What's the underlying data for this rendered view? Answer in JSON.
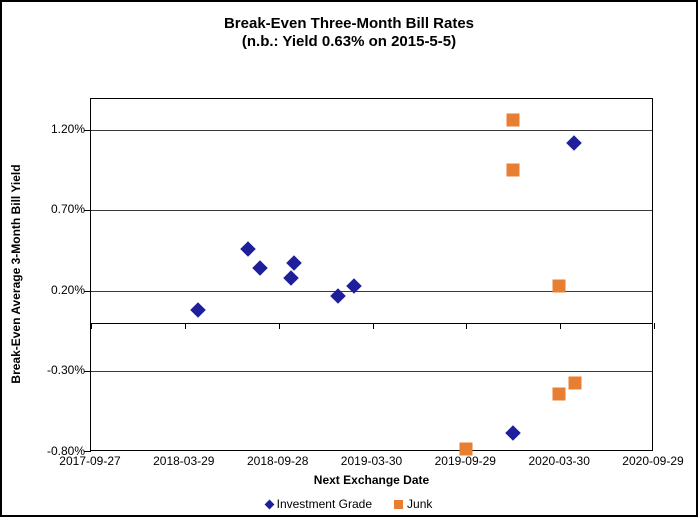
{
  "chart": {
    "title_line1": "Break-Even Three-Month Bill Rates",
    "title_line2": "(n.b.: Yield 0.63% on 2015-5-5)"
  },
  "chart_data": {
    "type": "scatter",
    "title": "Break-Even Three-Month Bill Rates (n.b.: Yield 0.63% on 2015-5-5)",
    "xlabel": "Next Exchange Date",
    "ylabel": "Break-Even Average 3-Month Bill Yield",
    "legend_position": "bottom",
    "grid": true,
    "x_range_dates": [
      "2017-09-27",
      "2020-09-29"
    ],
    "ylim": [
      -0.8,
      1.39
    ],
    "y_major_unit": 0.5,
    "x_axis_crosses_at_y": 0,
    "x_ticks": [
      {
        "date": "2017-09-27",
        "label": "2017-09-27"
      },
      {
        "date": "2018-03-29",
        "label": "2018-03-29"
      },
      {
        "date": "2018-09-28",
        "label": "2018-09-28"
      },
      {
        "date": "2019-03-30",
        "label": "2019-03-30"
      },
      {
        "date": "2019-09-29",
        "label": "2019-09-29"
      },
      {
        "date": "2020-03-30",
        "label": "2020-03-30"
      },
      {
        "date": "2020-09-29",
        "label": "2020-09-29"
      }
    ],
    "y_ticks": [
      {
        "value": 1.2,
        "label": "1.20%"
      },
      {
        "value": 0.7,
        "label": "0.70%"
      },
      {
        "value": 0.2,
        "label": "0.20%"
      },
      {
        "value": -0.3,
        "label": "-0.30%"
      },
      {
        "value": -0.8,
        "label": "-0.80%"
      }
    ],
    "gridline_values": [
      1.2,
      0.7,
      0.2,
      -0.3
    ],
    "series": [
      {
        "name": "Investment Grade",
        "marker": "diamond",
        "color": "#1F1F9B",
        "points": [
          {
            "x": "2018-04-23",
            "y": 0.08
          },
          {
            "x": "2018-07-31",
            "y": 0.46
          },
          {
            "x": "2018-08-23",
            "y": 0.34
          },
          {
            "x": "2018-10-22",
            "y": 0.28
          },
          {
            "x": "2018-10-27",
            "y": 0.37
          },
          {
            "x": "2019-01-21",
            "y": 0.17
          },
          {
            "x": "2019-02-21",
            "y": 0.23
          },
          {
            "x": "2019-12-28",
            "y": -0.68
          },
          {
            "x": "2020-04-25",
            "y": 1.12
          }
        ]
      },
      {
        "name": "Junk",
        "marker": "square",
        "color": "#E87E31",
        "points": [
          {
            "x": "2019-09-28",
            "y": -0.78
          },
          {
            "x": "2019-12-28",
            "y": 1.26
          },
          {
            "x": "2019-12-28",
            "y": 0.95
          },
          {
            "x": "2020-03-28",
            "y": 0.23
          },
          {
            "x": "2020-03-28",
            "y": -0.44
          },
          {
            "x": "2020-04-27",
            "y": -0.37
          }
        ]
      }
    ]
  }
}
